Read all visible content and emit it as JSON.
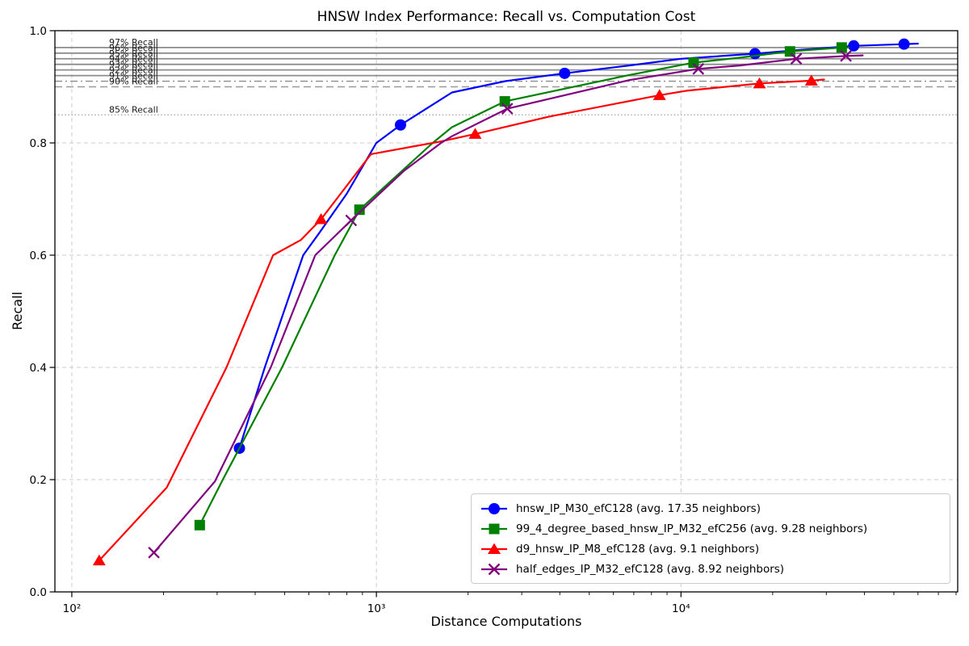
{
  "title": "HNSW Index Performance: Recall vs. Computation Cost",
  "chart_data": {
    "type": "line",
    "title": "HNSW Index Performance: Recall vs. Computation Cost",
    "xlabel": "Distance Computations",
    "ylabel": "Recall",
    "x_scale": "log",
    "xlim": [
      88,
      81000
    ],
    "ylim": [
      0.0,
      1.0
    ],
    "grid": {
      "show": true,
      "style": "dashed",
      "color": "#cccccc"
    },
    "x_ticks": [
      {
        "value": 100,
        "label": "10²"
      },
      {
        "value": 1000,
        "label": "10³"
      },
      {
        "value": 10000,
        "label": "10⁴"
      }
    ],
    "x_minor_ticks": [
      200,
      300,
      400,
      500,
      600,
      700,
      800,
      900,
      2000,
      3000,
      4000,
      5000,
      6000,
      7000,
      8000,
      9000,
      20000,
      30000,
      40000,
      50000,
      60000,
      70000,
      80000
    ],
    "y_ticks": [
      {
        "value": 0.0,
        "label": "0.0"
      },
      {
        "value": 0.2,
        "label": "0.2"
      },
      {
        "value": 0.4,
        "label": "0.4"
      },
      {
        "value": 0.6,
        "label": "0.6"
      },
      {
        "value": 0.8,
        "label": "0.8"
      },
      {
        "value": 1.0,
        "label": "1.0"
      }
    ],
    "reference_lines": [
      {
        "y": 0.97,
        "label": "97% Recall",
        "style": "solid",
        "color": "#8c8c8c"
      },
      {
        "y": 0.96,
        "label": "96% Recall",
        "style": "solid",
        "color": "#8c8c8c"
      },
      {
        "y": 0.95,
        "label": "95% Recall",
        "style": "solid",
        "color": "#8c8c8c"
      },
      {
        "y": 0.94,
        "label": "94% Recall",
        "style": "solid",
        "color": "#8c8c8c"
      },
      {
        "y": 0.93,
        "label": "93% Recall",
        "style": "solid",
        "color": "#8c8c8c"
      },
      {
        "y": 0.92,
        "label": "92% Recall",
        "style": "solid",
        "color": "#8c8c8c"
      },
      {
        "y": 0.91,
        "label": "91% Recall",
        "style": "dashdot",
        "color": "#8c8c8c"
      },
      {
        "y": 0.9,
        "label": "90% Recall",
        "style": "dashed",
        "color": "#999999"
      },
      {
        "y": 0.85,
        "label": "85% Recall",
        "style": "dotted",
        "color": "#b0b0b0"
      }
    ],
    "series": [
      {
        "name": "hnsw_IP_M30_efC128 (avg. 17.35 neighbors)",
        "color": "#0000ff",
        "marker": "circle",
        "points": [
          [
            355,
            0.256
          ],
          [
            430,
            0.4
          ],
          [
            575,
            0.6
          ],
          [
            650,
            0.64
          ],
          [
            800,
            0.71
          ],
          [
            1000,
            0.8
          ],
          [
            1200,
            0.832
          ],
          [
            1770,
            0.89
          ],
          [
            2650,
            0.91
          ],
          [
            4150,
            0.924
          ],
          [
            6760,
            0.938
          ],
          [
            10000,
            0.95
          ],
          [
            17500,
            0.959
          ],
          [
            25000,
            0.966
          ],
          [
            36900,
            0.973
          ],
          [
            54000,
            0.976
          ],
          [
            60000,
            0.977
          ]
        ],
        "marker_points": [
          [
            355,
            0.256
          ],
          [
            1200,
            0.832
          ],
          [
            4150,
            0.924
          ],
          [
            17500,
            0.959
          ],
          [
            36900,
            0.973
          ],
          [
            54000,
            0.976
          ]
        ]
      },
      {
        "name": "99_4_degree_based_hnsw_IP_M32_efC256 (avg. 9.28 neighbors)",
        "color": "#008000",
        "marker": "square",
        "points": [
          [
            263,
            0.119
          ],
          [
            313,
            0.2
          ],
          [
            490,
            0.4
          ],
          [
            730,
            0.6
          ],
          [
            880,
            0.681
          ],
          [
            1530,
            0.8
          ],
          [
            1770,
            0.828
          ],
          [
            2640,
            0.874
          ],
          [
            6760,
            0.921
          ],
          [
            11000,
            0.943
          ],
          [
            15600,
            0.952
          ],
          [
            22800,
            0.963
          ],
          [
            33700,
            0.97
          ],
          [
            35500,
            0.97
          ]
        ],
        "marker_points": [
          [
            263,
            0.119
          ],
          [
            880,
            0.681
          ],
          [
            2640,
            0.874
          ],
          [
            11000,
            0.943
          ],
          [
            22800,
            0.963
          ],
          [
            33700,
            0.97
          ]
        ]
      },
      {
        "name": "d9_hnsw_IP_M8_efC128 (avg. 9.1 neighbors)",
        "color": "#ff0000",
        "marker": "triangle",
        "points": [
          [
            123,
            0.056
          ],
          [
            205,
            0.186
          ],
          [
            322,
            0.4
          ],
          [
            458,
            0.6
          ],
          [
            565,
            0.627
          ],
          [
            658,
            0.664
          ],
          [
            740,
            0.7
          ],
          [
            960,
            0.78
          ],
          [
            1360,
            0.795
          ],
          [
            1610,
            0.802
          ],
          [
            2110,
            0.816
          ],
          [
            3700,
            0.847
          ],
          [
            8500,
            0.885
          ],
          [
            10400,
            0.893
          ],
          [
            18100,
            0.906
          ],
          [
            26800,
            0.911
          ],
          [
            29500,
            0.913
          ]
        ],
        "marker_points": [
          [
            123,
            0.056
          ],
          [
            658,
            0.664
          ],
          [
            2110,
            0.816
          ],
          [
            8500,
            0.885
          ],
          [
            18100,
            0.906
          ],
          [
            26800,
            0.911
          ]
        ]
      },
      {
        "name": "half_edges_IP_M32_efC128 (avg. 8.92 neighbors)",
        "color": "#800080",
        "marker": "x",
        "points": [
          [
            186,
            0.07
          ],
          [
            295,
            0.197
          ],
          [
            450,
            0.4
          ],
          [
            630,
            0.6
          ],
          [
            826,
            0.662
          ],
          [
            1230,
            0.75
          ],
          [
            1630,
            0.8
          ],
          [
            1770,
            0.812
          ],
          [
            2690,
            0.861
          ],
          [
            6760,
            0.912
          ],
          [
            11400,
            0.932
          ],
          [
            15600,
            0.938
          ],
          [
            23900,
            0.95
          ],
          [
            34800,
            0.955
          ],
          [
            39500,
            0.956
          ]
        ],
        "marker_points": [
          [
            186,
            0.07
          ],
          [
            826,
            0.662
          ],
          [
            2690,
            0.861
          ],
          [
            11400,
            0.932
          ],
          [
            23900,
            0.95
          ],
          [
            34800,
            0.955
          ]
        ]
      }
    ],
    "legend": {
      "position": "lower right"
    }
  }
}
